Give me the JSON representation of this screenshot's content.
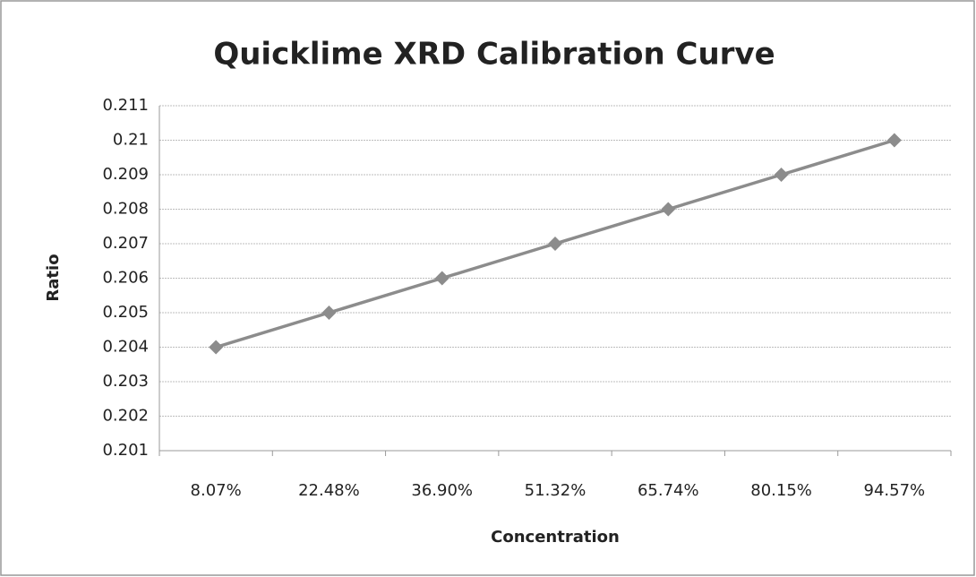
{
  "chart_data": {
    "type": "line",
    "title": "Quicklime XRD Calibration Curve",
    "x_label": "Concentration",
    "y_label": "Ratio",
    "categories": [
      "8.07%",
      "22.48%",
      "36.90%",
      "51.32%",
      "65.74%",
      "80.15%",
      "94.57%"
    ],
    "values": [
      0.204,
      0.205,
      0.206,
      0.207,
      0.208,
      0.209,
      0.21
    ],
    "color": "#8c8c8c",
    "ylim": [
      0.201,
      0.211
    ],
    "yticks": [
      0.201,
      0.202,
      0.203,
      0.204,
      0.205,
      0.206,
      0.207,
      0.208,
      0.209,
      0.21,
      0.211
    ],
    "grid": true
  }
}
